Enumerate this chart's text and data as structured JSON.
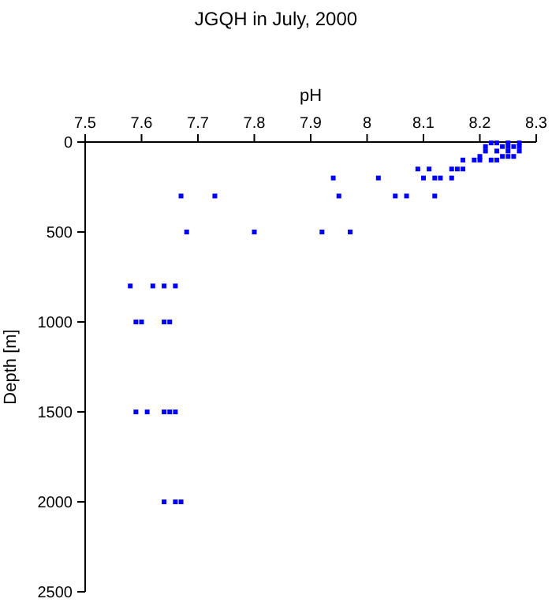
{
  "chart_data": {
    "type": "scatter",
    "title": "JGQH in July, 2000",
    "xlabel": "pH",
    "ylabel": "Depth [m]",
    "xlim": [
      7.5,
      8.3
    ],
    "xticks": [
      7.5,
      7.6,
      7.7,
      7.8,
      7.9,
      8,
      8.1,
      8.2,
      8.3
    ],
    "ylim": [
      2500,
      0
    ],
    "yticks": [
      0,
      500,
      1000,
      1500,
      2000,
      2500
    ],
    "grid": false,
    "marker": "square",
    "series": [
      {
        "color": "#0000ff",
        "x": [
          7.64,
          7.66,
          7.67,
          7.59,
          7.61,
          7.64,
          7.65,
          7.66,
          7.59,
          7.6,
          7.64,
          7.65,
          7.58,
          7.62,
          7.64,
          7.66,
          7.68,
          7.8,
          7.92,
          7.97,
          7.67,
          7.73,
          7.95,
          8.05,
          8.07,
          8.12,
          7.94,
          8.02,
          8.1,
          8.12,
          8.13,
          8.15,
          8.09,
          8.11,
          8.15,
          8.16,
          8.17,
          8.17,
          8.19,
          8.2,
          8.22,
          8.23,
          8.2,
          8.24,
          8.25,
          8.26,
          8.21,
          8.23,
          8.25,
          8.27,
          8.21,
          8.24,
          8.25,
          8.26,
          8.27,
          8.22,
          8.23,
          8.25,
          8.27
        ],
        "values": [
          2000,
          2000,
          2000,
          1500,
          1500,
          1500,
          1500,
          1500,
          1000,
          1000,
          1000,
          1000,
          800,
          800,
          800,
          800,
          500,
          500,
          500,
          500,
          300,
          300,
          300,
          300,
          300,
          300,
          200,
          200,
          200,
          200,
          200,
          200,
          150,
          150,
          150,
          150,
          150,
          100,
          100,
          100,
          100,
          100,
          80,
          80,
          80,
          80,
          50,
          50,
          50,
          50,
          25,
          25,
          25,
          25,
          25,
          5,
          5,
          5,
          5
        ]
      }
    ]
  }
}
